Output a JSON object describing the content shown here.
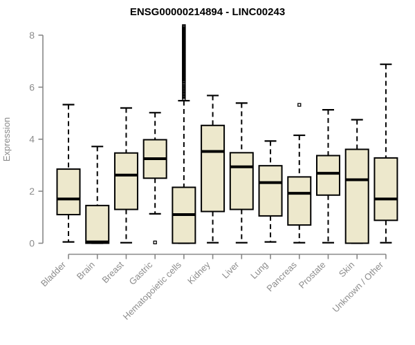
{
  "title": "ENSG00000214894 - LINC00243",
  "chart_data": {
    "type": "box",
    "title": "ENSG00000214894 - LINC00243",
    "xlabel": "",
    "ylabel": "Expression",
    "ylim": [
      0,
      8.4
    ],
    "yticks": [
      0,
      2,
      4,
      6,
      8
    ],
    "grid": false,
    "legend": "none",
    "colors": {
      "box_fill": "#ede8cc",
      "box_stroke": "#000000",
      "median": "#000000",
      "whisker": "#000000",
      "axis": "#878787",
      "tick_text": "#8c8c8c",
      "title_text": "#000000",
      "background": "#ffffff"
    },
    "categories": [
      "Bladder",
      "Brain",
      "Breast",
      "Gastric",
      "Hematopoietic cells",
      "Kidney",
      "Liver",
      "Lung",
      "Pancreas",
      "Prostate",
      "Skin",
      "Unknown / Other"
    ],
    "series": [
      {
        "category": "Bladder",
        "low": 0.05,
        "q1": 1.1,
        "median": 1.7,
        "q3": 2.85,
        "high": 5.33,
        "outliers": []
      },
      {
        "category": "Brain",
        "low": 0.0,
        "q1": 0.0,
        "median": 0.05,
        "q3": 1.45,
        "high": 3.72,
        "outliers": []
      },
      {
        "category": "Breast",
        "low": 0.02,
        "q1": 1.3,
        "median": 2.62,
        "q3": 3.47,
        "high": 5.2,
        "outliers": []
      },
      {
        "category": "Gastric",
        "low": 1.13,
        "q1": 2.5,
        "median": 3.25,
        "q3": 3.98,
        "high": 5.02,
        "outliers": [
          0.03
        ]
      },
      {
        "category": "Hematopoietic cells",
        "low": 0.0,
        "q1": 0.0,
        "median": 1.1,
        "q3": 2.15,
        "high": 5.48,
        "outliers": [],
        "outlier_stacks": [
          {
            "from": 6.2,
            "to": 8.35,
            "count": 52
          },
          {
            "from": 5.55,
            "to": 6.12,
            "count": 9
          }
        ]
      },
      {
        "category": "Kidney",
        "low": 0.02,
        "q1": 1.22,
        "median": 3.53,
        "q3": 4.53,
        "high": 5.68,
        "outliers": []
      },
      {
        "category": "Liver",
        "low": 0.02,
        "q1": 1.3,
        "median": 2.94,
        "q3": 3.48,
        "high": 5.39,
        "outliers": []
      },
      {
        "category": "Lung",
        "low": 0.05,
        "q1": 1.05,
        "median": 2.33,
        "q3": 2.98,
        "high": 3.93,
        "outliers": []
      },
      {
        "category": "Pancreas",
        "low": 0.02,
        "q1": 0.7,
        "median": 1.92,
        "q3": 2.55,
        "high": 4.15,
        "outliers": [
          5.32
        ]
      },
      {
        "category": "Prostate",
        "low": 0.02,
        "q1": 1.85,
        "median": 2.69,
        "q3": 3.37,
        "high": 5.13,
        "outliers": []
      },
      {
        "category": "Skin",
        "low": 0.0,
        "q1": 0.0,
        "median": 2.44,
        "q3": 3.61,
        "high": 4.75,
        "outliers": []
      },
      {
        "category": "Unknown / Other",
        "low": 0.02,
        "q1": 0.88,
        "median": 1.7,
        "q3": 3.28,
        "high": 6.88,
        "outliers": []
      }
    ]
  }
}
